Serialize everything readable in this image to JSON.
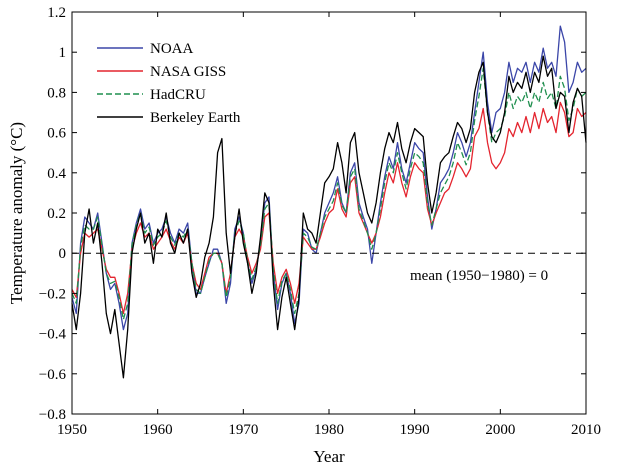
{
  "chart_data": {
    "type": "line",
    "xlabel": "Year",
    "ylabel": "Temperature anomaly (°C)",
    "xlim": [
      1950,
      2010
    ],
    "ylim": [
      -0.8,
      1.2
    ],
    "xticks": [
      1950,
      1960,
      1970,
      1980,
      1990,
      2000,
      2010
    ],
    "yticks": [
      -0.8,
      -0.6,
      -0.4,
      -0.2,
      0,
      0.2,
      0.4,
      0.6,
      0.8,
      1,
      1.2
    ],
    "ytick_labels": [
      "−0.8",
      "−0.6",
      "−0.4",
      "−0.2",
      "0",
      "0.2",
      "0.4",
      "0.6",
      "0.8",
      "1",
      "1.2"
    ],
    "grid": false,
    "legend_position": "top-left",
    "reference_line": {
      "y": 0,
      "style": "dashed"
    },
    "annotation": "mean (1950−1980) = 0",
    "series": [
      {
        "name": "NOAA",
        "color": "#3b46a8",
        "dash": "none",
        "x": [
          1950,
          1950.5,
          1951,
          1951.5,
          1952,
          1952.5,
          1953,
          1953.5,
          1954,
          1954.5,
          1955,
          1955.5,
          1956,
          1956.5,
          1957,
          1957.5,
          1958,
          1958.5,
          1959,
          1959.5,
          1960,
          1960.5,
          1961,
          1961.5,
          1962,
          1962.5,
          1963,
          1963.5,
          1964,
          1964.5,
          1965,
          1965.5,
          1966,
          1966.5,
          1967,
          1967.5,
          1968,
          1968.5,
          1969,
          1969.5,
          1970,
          1970.5,
          1971,
          1971.5,
          1972,
          1972.5,
          1973,
          1973.5,
          1974,
          1974.5,
          1975,
          1975.5,
          1976,
          1976.5,
          1977,
          1977.5,
          1978,
          1978.5,
          1979,
          1979.5,
          1980,
          1980.5,
          1981,
          1981.5,
          1982,
          1982.5,
          1983,
          1983.5,
          1984,
          1984.5,
          1985,
          1985.5,
          1986,
          1986.5,
          1987,
          1987.5,
          1988,
          1988.5,
          1989,
          1989.5,
          1990,
          1990.5,
          1991,
          1991.5,
          1992,
          1992.5,
          1993,
          1993.5,
          1994,
          1994.5,
          1995,
          1995.5,
          1996,
          1996.5,
          1997,
          1997.5,
          1998,
          1998.5,
          1999,
          1999.5,
          2000,
          2000.5,
          2001,
          2001.5,
          2002,
          2002.5,
          2003,
          2003.5,
          2004,
          2004.5,
          2005,
          2005.5,
          2006,
          2006.5,
          2007,
          2007.5,
          2008,
          2008.5,
          2009,
          2009.5,
          2010
        ],
        "y": [
          -0.22,
          -0.3,
          0.05,
          0.18,
          0.15,
          0.12,
          0.2,
          0.05,
          -0.1,
          -0.18,
          -0.15,
          -0.25,
          -0.38,
          -0.3,
          0.05,
          0.15,
          0.22,
          0.12,
          0.15,
          0.05,
          0.1,
          0.12,
          0.18,
          0.1,
          0.05,
          0.12,
          0.1,
          0.15,
          -0.05,
          -0.2,
          -0.2,
          -0.12,
          -0.05,
          0.02,
          0.02,
          -0.05,
          -0.25,
          -0.15,
          0.12,
          0.18,
          0.1,
          -0.05,
          -0.15,
          -0.08,
          0.05,
          0.25,
          0.28,
          -0.1,
          -0.28,
          -0.15,
          -0.1,
          -0.2,
          -0.35,
          -0.25,
          0.12,
          0.1,
          0.02,
          0.0,
          0.1,
          0.2,
          0.25,
          0.3,
          0.38,
          0.25,
          0.2,
          0.4,
          0.45,
          0.25,
          0.18,
          0.12,
          -0.05,
          0.1,
          0.25,
          0.38,
          0.48,
          0.42,
          0.55,
          0.42,
          0.35,
          0.45,
          0.55,
          0.52,
          0.5,
          0.28,
          0.12,
          0.22,
          0.35,
          0.38,
          0.42,
          0.5,
          0.6,
          0.55,
          0.48,
          0.55,
          0.7,
          0.85,
          1.0,
          0.75,
          0.6,
          0.7,
          0.72,
          0.8,
          0.95,
          0.85,
          0.92,
          0.9,
          0.95,
          0.85,
          0.95,
          0.9,
          1.02,
          0.92,
          0.95,
          0.88,
          1.13,
          1.05,
          0.8,
          0.85,
          0.95,
          0.9,
          0.92
        ]
      },
      {
        "name": "NASA GISS",
        "color": "#e4252f",
        "dash": "none",
        "x": [
          1950,
          1950.5,
          1951,
          1951.5,
          1952,
          1952.5,
          1953,
          1953.5,
          1954,
          1954.5,
          1955,
          1955.5,
          1956,
          1956.5,
          1957,
          1957.5,
          1958,
          1958.5,
          1959,
          1959.5,
          1960,
          1960.5,
          1961,
          1961.5,
          1962,
          1962.5,
          1963,
          1963.5,
          1964,
          1964.5,
          1965,
          1965.5,
          1966,
          1966.5,
          1967,
          1967.5,
          1968,
          1968.5,
          1969,
          1969.5,
          1970,
          1970.5,
          1971,
          1971.5,
          1972,
          1972.5,
          1973,
          1973.5,
          1974,
          1974.5,
          1975,
          1975.5,
          1976,
          1976.5,
          1977,
          1977.5,
          1978,
          1978.5,
          1979,
          1979.5,
          1980,
          1980.5,
          1981,
          1981.5,
          1982,
          1982.5,
          1983,
          1983.5,
          1984,
          1984.5,
          1985,
          1985.5,
          1986,
          1986.5,
          1987,
          1987.5,
          1988,
          1988.5,
          1989,
          1989.5,
          1990,
          1990.5,
          1991,
          1991.5,
          1992,
          1992.5,
          1993,
          1993.5,
          1994,
          1994.5,
          1995,
          1995.5,
          1996,
          1996.5,
          1997,
          1997.5,
          1998,
          1998.5,
          1999,
          1999.5,
          2000,
          2000.5,
          2001,
          2001.5,
          2002,
          2002.5,
          2003,
          2003.5,
          2004,
          2004.5,
          2005,
          2005.5,
          2006,
          2006.5,
          2007,
          2007.5,
          2008,
          2008.5,
          2009,
          2009.5,
          2010
        ],
        "y": [
          -0.18,
          -0.22,
          0.0,
          0.1,
          0.08,
          0.1,
          0.12,
          0.02,
          -0.08,
          -0.12,
          -0.12,
          -0.2,
          -0.3,
          -0.2,
          0.02,
          0.1,
          0.15,
          0.08,
          0.1,
          0.02,
          0.05,
          0.08,
          0.12,
          0.06,
          0.02,
          0.08,
          0.05,
          0.1,
          -0.05,
          -0.15,
          -0.18,
          -0.1,
          -0.02,
          0.0,
          0.0,
          -0.05,
          -0.2,
          -0.1,
          0.08,
          0.12,
          0.08,
          -0.02,
          -0.1,
          -0.05,
          0.02,
          0.18,
          0.2,
          -0.05,
          -0.2,
          -0.12,
          -0.08,
          -0.15,
          -0.25,
          -0.15,
          0.08,
          0.05,
          0.02,
          0.02,
          0.08,
          0.15,
          0.2,
          0.22,
          0.32,
          0.22,
          0.18,
          0.35,
          0.38,
          0.2,
          0.15,
          0.1,
          0.05,
          0.1,
          0.18,
          0.3,
          0.4,
          0.35,
          0.45,
          0.35,
          0.28,
          0.38,
          0.45,
          0.42,
          0.4,
          0.22,
          0.14,
          0.2,
          0.25,
          0.3,
          0.32,
          0.38,
          0.45,
          0.42,
          0.38,
          0.42,
          0.58,
          0.62,
          0.72,
          0.55,
          0.45,
          0.42,
          0.45,
          0.5,
          0.62,
          0.58,
          0.65,
          0.6,
          0.68,
          0.6,
          0.7,
          0.62,
          0.72,
          0.65,
          0.68,
          0.6,
          0.75,
          0.7,
          0.58,
          0.6,
          0.72,
          0.68,
          0.7
        ]
      },
      {
        "name": "HadCRU",
        "color": "#1f8f4e",
        "dash": "dashed",
        "x": [
          1950,
          1950.5,
          1951,
          1951.5,
          1952,
          1952.5,
          1953,
          1953.5,
          1954,
          1954.5,
          1955,
          1955.5,
          1956,
          1956.5,
          1957,
          1957.5,
          1958,
          1958.5,
          1959,
          1959.5,
          1960,
          1960.5,
          1961,
          1961.5,
          1962,
          1962.5,
          1963,
          1963.5,
          1964,
          1964.5,
          1965,
          1965.5,
          1966,
          1966.5,
          1967,
          1967.5,
          1968,
          1968.5,
          1969,
          1969.5,
          1970,
          1970.5,
          1971,
          1971.5,
          1972,
          1972.5,
          1973,
          1973.5,
          1974,
          1974.5,
          1975,
          1975.5,
          1976,
          1976.5,
          1977,
          1977.5,
          1978,
          1978.5,
          1979,
          1979.5,
          1980,
          1980.5,
          1981,
          1981.5,
          1982,
          1982.5,
          1983,
          1983.5,
          1984,
          1984.5,
          1985,
          1985.5,
          1986,
          1986.5,
          1987,
          1987.5,
          1988,
          1988.5,
          1989,
          1989.5,
          1990,
          1990.5,
          1991,
          1991.5,
          1992,
          1992.5,
          1993,
          1993.5,
          1994,
          1994.5,
          1995,
          1995.5,
          1996,
          1996.5,
          1997,
          1997.5,
          1998,
          1998.5,
          1999,
          1999.5,
          2000,
          2000.5,
          2001,
          2001.5,
          2002,
          2002.5,
          2003,
          2003.5,
          2004,
          2004.5,
          2005,
          2005.5,
          2006,
          2006.5,
          2007,
          2007.5,
          2008,
          2008.5,
          2009,
          2009.5,
          2010
        ],
        "y": [
          -0.2,
          -0.25,
          0.03,
          0.14,
          0.12,
          0.12,
          0.18,
          0.04,
          -0.1,
          -0.15,
          -0.14,
          -0.22,
          -0.33,
          -0.25,
          0.04,
          0.14,
          0.2,
          0.1,
          0.13,
          0.04,
          0.08,
          0.1,
          0.16,
          0.08,
          0.04,
          0.1,
          0.08,
          0.12,
          -0.05,
          -0.18,
          -0.2,
          -0.12,
          -0.04,
          0.0,
          0.0,
          -0.05,
          -0.22,
          -0.12,
          0.1,
          0.16,
          0.1,
          -0.04,
          -0.13,
          -0.07,
          0.04,
          0.22,
          0.25,
          -0.08,
          -0.25,
          -0.14,
          -0.1,
          -0.18,
          -0.3,
          -0.2,
          0.1,
          0.08,
          0.03,
          0.02,
          0.1,
          0.18,
          0.22,
          0.26,
          0.35,
          0.24,
          0.2,
          0.38,
          0.42,
          0.22,
          0.16,
          0.1,
          0.02,
          0.1,
          0.22,
          0.35,
          0.45,
          0.4,
          0.5,
          0.4,
          0.32,
          0.42,
          0.5,
          0.48,
          0.45,
          0.25,
          0.14,
          0.22,
          0.3,
          0.34,
          0.38,
          0.45,
          0.55,
          0.5,
          0.44,
          0.5,
          0.66,
          0.78,
          0.92,
          0.7,
          0.55,
          0.6,
          0.62,
          0.68,
          0.8,
          0.72,
          0.78,
          0.75,
          0.8,
          0.72,
          0.8,
          0.75,
          0.85,
          0.77,
          0.8,
          0.72,
          0.88,
          0.82,
          0.66,
          0.72,
          0.82,
          0.78,
          0.8
        ]
      },
      {
        "name": "Berkeley Earth",
        "color": "#000000",
        "dash": "none",
        "x": [
          1950,
          1950.5,
          1951,
          1951.5,
          1952,
          1952.5,
          1953,
          1953.5,
          1954,
          1954.5,
          1955,
          1955.5,
          1956,
          1956.5,
          1957,
          1957.5,
          1958,
          1958.5,
          1959,
          1959.5,
          1960,
          1960.5,
          1961,
          1961.5,
          1962,
          1962.5,
          1963,
          1963.5,
          1964,
          1964.5,
          1965,
          1965.5,
          1966,
          1966.5,
          1967,
          1967.5,
          1968,
          1968.5,
          1969,
          1969.5,
          1970,
          1970.5,
          1971,
          1971.5,
          1972,
          1972.5,
          1973,
          1973.5,
          1974,
          1974.5,
          1975,
          1975.5,
          1976,
          1976.5,
          1977,
          1977.5,
          1978,
          1978.5,
          1979,
          1979.5,
          1980,
          1980.5,
          1981,
          1981.5,
          1982,
          1982.5,
          1983,
          1983.5,
          1984,
          1984.5,
          1985,
          1985.5,
          1986,
          1986.5,
          1987,
          1987.5,
          1988,
          1988.5,
          1989,
          1989.5,
          1990,
          1990.5,
          1991,
          1991.5,
          1992,
          1992.5,
          1993,
          1993.5,
          1994,
          1994.5,
          1995,
          1995.5,
          1996,
          1996.5,
          1997,
          1997.5,
          1998,
          1998.5,
          1999,
          1999.5,
          2000,
          2000.5,
          2001,
          2001.5,
          2002,
          2002.5,
          2003,
          2003.5,
          2004,
          2004.5,
          2005,
          2005.5,
          2006,
          2006.5,
          2007,
          2007.5,
          2008,
          2008.5,
          2009,
          2009.5,
          2010
        ],
        "y": [
          -0.25,
          -0.38,
          -0.2,
          0.1,
          0.22,
          0.05,
          0.15,
          -0.05,
          -0.3,
          -0.4,
          -0.28,
          -0.45,
          -0.62,
          -0.38,
          0.0,
          0.12,
          0.2,
          0.05,
          0.1,
          -0.05,
          0.12,
          0.08,
          0.2,
          0.05,
          0.0,
          0.1,
          0.05,
          0.12,
          -0.1,
          -0.22,
          -0.15,
          -0.02,
          0.05,
          0.18,
          0.5,
          0.57,
          0.1,
          -0.1,
          0.08,
          0.22,
          0.05,
          -0.05,
          -0.2,
          -0.1,
          0.08,
          0.3,
          0.25,
          -0.15,
          -0.38,
          -0.22,
          -0.12,
          -0.25,
          -0.38,
          -0.22,
          0.2,
          0.12,
          0.1,
          0.05,
          0.2,
          0.35,
          0.38,
          0.42,
          0.55,
          0.45,
          0.3,
          0.55,
          0.6,
          0.4,
          0.3,
          0.2,
          0.15,
          0.25,
          0.4,
          0.52,
          0.6,
          0.55,
          0.65,
          0.52,
          0.45,
          0.55,
          0.62,
          0.6,
          0.58,
          0.35,
          0.2,
          0.3,
          0.45,
          0.48,
          0.5,
          0.58,
          0.65,
          0.62,
          0.55,
          0.62,
          0.8,
          0.9,
          0.95,
          0.7,
          0.58,
          0.55,
          0.6,
          0.7,
          0.88,
          0.8,
          0.85,
          0.82,
          0.9,
          0.8,
          0.9,
          0.85,
          0.98,
          0.88,
          0.92,
          0.72,
          0.8,
          0.78,
          0.6,
          0.75,
          0.82,
          0.78,
          0.55
        ]
      }
    ]
  }
}
